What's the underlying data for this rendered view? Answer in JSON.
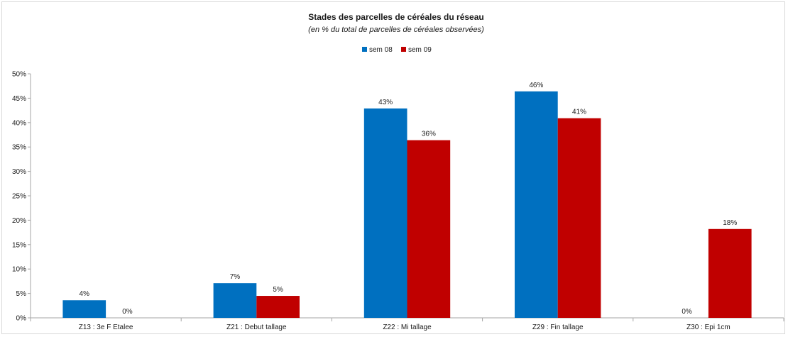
{
  "chart_data": {
    "type": "bar",
    "title": "Stades des parcelles de céréales du réseau",
    "subtitle": "(en %  du total de parcelles de céréales observées)",
    "categories": [
      "Z13 : 3e F Etalee",
      "Z21 : Debut tallage",
      "Z22 : Mi tallage",
      "Z29 : Fin tallage",
      "Z30 : Epi 1cm"
    ],
    "series": [
      {
        "name": "sem 08",
        "color": "#0070c0",
        "values": [
          3.6,
          7.1,
          42.9,
          46.4,
          0
        ],
        "labels": [
          "4%",
          "7%",
          "43%",
          "46%",
          "0%"
        ]
      },
      {
        "name": "sem 09",
        "color": "#c00000",
        "values": [
          0,
          4.5,
          36.4,
          40.9,
          18.2
        ],
        "labels": [
          "0%",
          "5%",
          "36%",
          "41%",
          "18%"
        ]
      }
    ],
    "ylim": [
      0,
      50
    ],
    "yticks": [
      0,
      5,
      10,
      15,
      20,
      25,
      30,
      35,
      40,
      45,
      50
    ],
    "ytick_labels": [
      "0%",
      "5%",
      "10%",
      "15%",
      "20%",
      "25%",
      "30%",
      "35%",
      "40%",
      "45%",
      "50%"
    ],
    "xlabel": "",
    "ylabel": "",
    "legend": "top-center",
    "grid": false,
    "axis_color": "#a6a6a6"
  }
}
